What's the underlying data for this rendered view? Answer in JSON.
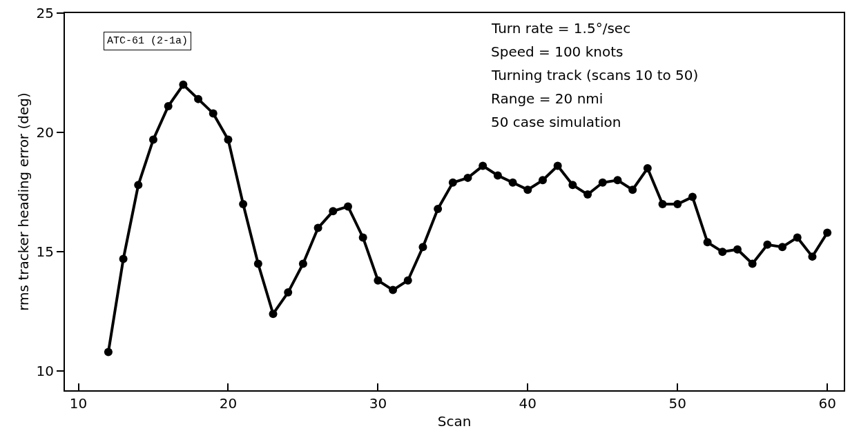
{
  "chart_data": {
    "type": "line",
    "xlabel": "Scan",
    "ylabel": "rms tracker heading error (deg)",
    "x": [
      12,
      13,
      14,
      15,
      16,
      17,
      18,
      19,
      20,
      21,
      22,
      23,
      24,
      25,
      26,
      27,
      28,
      29,
      30,
      31,
      32,
      33,
      34,
      35,
      36,
      37,
      38,
      39,
      40,
      41,
      42,
      43,
      44,
      45,
      46,
      47,
      48,
      49,
      50,
      51,
      52,
      53,
      54,
      55,
      56,
      57,
      58,
      59,
      60
    ],
    "series": [
      {
        "color": "#000000",
        "values": [
          10.8,
          14.7,
          17.8,
          19.7,
          21.1,
          22.0,
          21.4,
          20.8,
          19.7,
          17.0,
          14.5,
          12.4,
          13.3,
          14.5,
          16.0,
          16.7,
          16.9,
          15.6,
          13.8,
          13.4,
          13.8,
          15.2,
          16.8,
          17.9,
          18.1,
          18.6,
          18.2,
          17.9,
          17.6,
          18.0,
          18.6,
          17.8,
          17.4,
          17.9,
          18.0,
          17.6,
          18.5,
          17.0,
          17.0,
          17.3,
          15.4,
          15.0,
          15.1,
          14.5,
          15.3,
          15.2,
          15.6,
          14.8,
          15.8
        ]
      }
    ],
    "xlim": [
      9.1,
      61.1
    ],
    "ylim": [
      9.2,
      25
    ],
    "xticks": [
      10,
      20,
      30,
      40,
      50,
      60
    ],
    "yticks": [
      10,
      15,
      20,
      25
    ],
    "marker": "circle",
    "line_style": "solid",
    "legend": false,
    "annotations": [
      "ATC-61 (2-1a)",
      "Turn rate = 1.5°/sec",
      "Speed = 100 knots",
      "Turning track (scans 10 to 50)",
      "Range = 20 nmi",
      "50 case simulation"
    ]
  }
}
